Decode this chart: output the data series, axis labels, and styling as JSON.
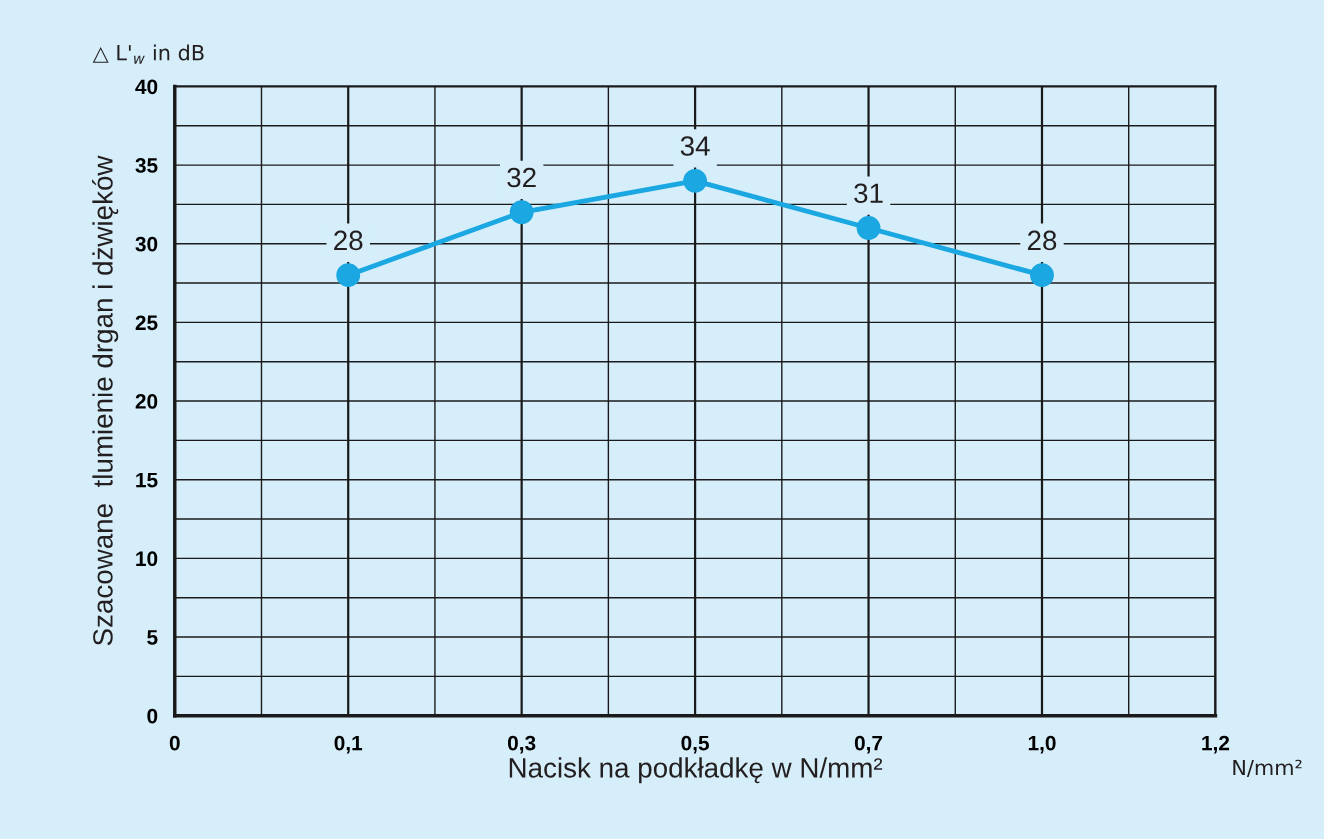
{
  "chart_data": {
    "type": "line",
    "categories": [
      "0",
      "0,1",
      "0,3",
      "0,5",
      "0,7",
      "1,0",
      "1,2"
    ],
    "series": [
      {
        "color": "#1ba7e1",
        "values": [
          null,
          28,
          32,
          34,
          31,
          28,
          null
        ]
      }
    ],
    "ylabel": "Szacowane  tlumienie drgan i dżwięków",
    "xlabel": "Nacisk na podkładkę w N/mm²",
    "annotations": [
      "△ L'$_{w}$ in dB",
      "N/mm²"
    ],
    "ylim": [
      0,
      40
    ],
    "yticks": [
      0,
      {
        "value": 2.5,
        "label": null
      },
      5,
      {
        "value": 7.5,
        "label": null
      },
      10,
      {
        "value": 12.5,
        "label": null
      },
      15,
      {
        "value": 17.5,
        "label": null
      },
      20,
      {
        "value": 22.5,
        "label": null
      },
      25,
      {
        "value": 27.5,
        "label": null
      },
      30,
      {
        "value": 32.5,
        "label": null
      },
      35,
      {
        "value": 37.5,
        "label": null
      },
      40
    ],
    "grid": true,
    "marker": "circle",
    "line_style": "solid",
    "data_labels": true
  }
}
